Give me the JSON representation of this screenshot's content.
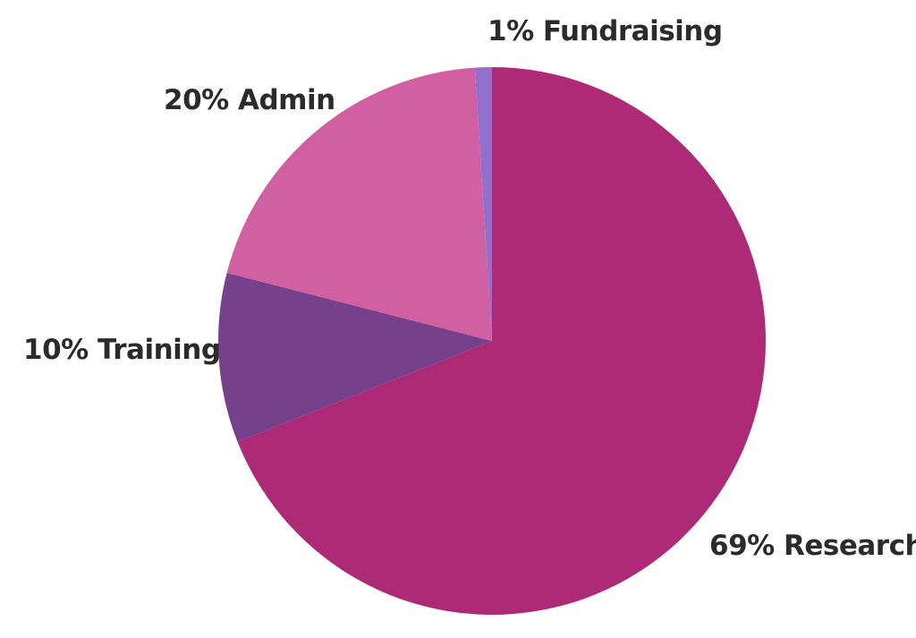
{
  "chart_data": {
    "type": "pie",
    "title": "",
    "start_angle_deg": 0,
    "direction": "clockwise",
    "slices": [
      {
        "label": "69% Research",
        "value": 69,
        "color": "#ad2a76"
      },
      {
        "label": "10% Training",
        "value": 10,
        "color": "#76408b"
      },
      {
        "label": "20% Admin",
        "value": 20,
        "color": "#d160a3"
      },
      {
        "label": "1% Fundraising",
        "value": 1,
        "color": "#9270cb"
      }
    ]
  }
}
